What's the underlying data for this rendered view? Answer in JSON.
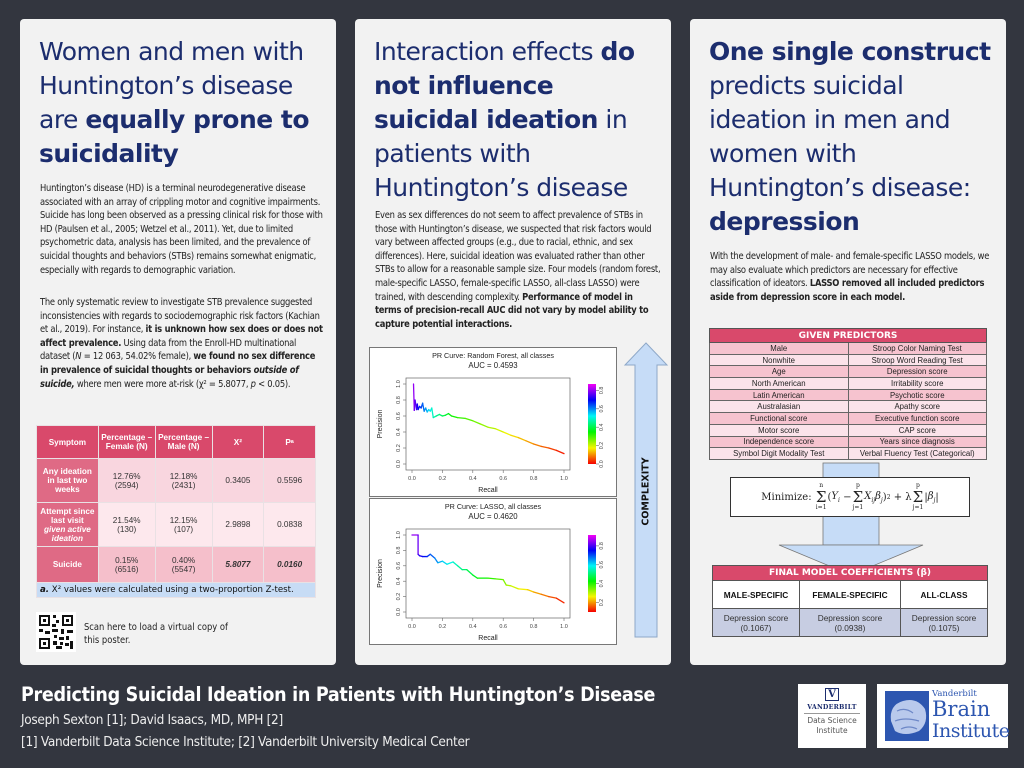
{
  "poster": {
    "title": "Predicting Suicidal Ideation in Patients with Huntington’s Disease",
    "authors": "Joseph Sexton [1]; David Isaacs, MD, MPH [2]",
    "affiliations": "[1] Vanderbilt Data Science Institute; [2] Vanderbilt University Medical Center",
    "logos": {
      "dsi": {
        "mark": "V",
        "name": "VANDERBILT",
        "line1": "Data Science",
        "line2": "Institute"
      },
      "vbi": {
        "line1": "Vanderbilt",
        "line2": "Brain",
        "line3": "Institute"
      }
    }
  },
  "panel1": {
    "heading_pre": "Women and men with Huntington’s disease are ",
    "heading_bold": "equally prone to suicidality",
    "para1": "Huntington’s disease (HD) is a terminal neurodegenerative disease associated with an array of crippling motor and cognitive impairments. Suicide has long been observed as a pressing clinical risk for those with HD (Paulsen et al., 2005; Wetzel et al., 2011). Yet, due to limited psychometric data, analysis has been limited, and the prevalence of suicidal thoughts and behaviors (STBs) remains somewhat enigmatic, especially with regards to demographic variation.",
    "para2_a": "The only systematic review to investigate STB prevalence suggested inconsistencies with regards to sociodemographic risk factors (Kachian et al., 2019). For instance, ",
    "para2_b": "it is unknown how sex does or does not affect prevalence.",
    "para2_c": " Using data from the Enroll-HD multinational dataset (",
    "para2_n": "N",
    "para2_d": " = 12 063, 54.02% female), ",
    "para2_e": "we found no sex difference in prevalence of suicidal thoughts or behaviors ",
    "para2_f": "outside of suicide,",
    "para2_g": " where men were more at-risk (χ² = 5.8077, ",
    "para2_p": "p",
    "para2_h": " < 0.05).",
    "table": {
      "headers": [
        "Symptom",
        "Percentage – Female (N)",
        "Percentage – Male (N)",
        "Χ²",
        "Pᵃ"
      ],
      "rows": [
        {
          "symptom": "Any ideation in last two weeks",
          "female": "12.76%",
          "female_n": "(2594)",
          "male": "12.18%",
          "male_n": "(2431)",
          "chi": "0.3405",
          "p": "0.5596"
        },
        {
          "symptom": "Attempt since last visit",
          "symptom_italic": "given active ideation",
          "female": "21.54%",
          "female_n": "(130)",
          "male": "12.15%",
          "male_n": "(107)",
          "chi": "2.9898",
          "p": "0.0838"
        },
        {
          "symptom": "Suicide",
          "female": "0.15%",
          "female_n": "(6516)",
          "male": "0.40%",
          "male_n": "(5547)",
          "chi": "5.8077",
          "p": "0.0160"
        }
      ],
      "note_label": "a.",
      "note": " Χ² values were calculated using a two-proportion Z-test."
    },
    "qr_text": "Scan here to load a virtual copy of this poster."
  },
  "panel2": {
    "heading_pre": "Interaction effects ",
    "heading_bold": "do not influence suicidal ideation",
    "heading_post": " in patients with Huntington’s disease",
    "para_a": "Even as sex differences do not seem to affect prevalence of STBs in those with Huntington’s disease, we suspected that risk factors would vary between affected groups (e.g., due to racial, ethnic, and sex differences). Here, suicidal ideation was evaluated rather than other STBs to allow for a reasonable sample size. Four models (random forest, male-specific LASSO, female-specific LASSO, all-class LASSO) were trained, with descending complexity. ",
    "para_b": "Performance of model in terms of precision-recall AUC did not vary by model ability to capture potential interactions.",
    "complexity_label": "COMPLEXITY"
  },
  "chart_data": [
    {
      "type": "line",
      "title": "PR Curve: Random Forest, all classes",
      "subtitle": "AUC = 0.4593",
      "xlabel": "Recall",
      "ylabel": "Precision",
      "xlim": [
        0,
        1
      ],
      "ylim": [
        0,
        1
      ],
      "xticks": [
        "0.0",
        "0.2",
        "0.4",
        "0.6",
        "0.8",
        "1.0"
      ],
      "yticks": [
        "0.0",
        "0.2",
        "0.4",
        "0.6",
        "0.8",
        "1.0"
      ],
      "colorbar_ticks": [
        "0.0",
        "0.2",
        "0.4",
        "0.6",
        "0.8"
      ],
      "colorbar_range": [
        0,
        0.8
      ],
      "x": [
        0.01,
        0.015,
        0.02,
        0.03,
        0.035,
        0.04,
        0.05,
        0.06,
        0.07,
        0.08,
        0.09,
        0.1,
        0.11,
        0.12,
        0.13,
        0.14,
        0.16,
        0.18,
        0.2,
        0.22,
        0.24,
        0.26,
        0.3,
        0.35,
        0.4,
        0.45,
        0.5,
        0.55,
        0.6,
        0.65,
        0.7,
        0.75,
        0.8,
        0.85,
        0.9,
        0.95,
        1.0
      ],
      "y": [
        1.0,
        0.67,
        0.8,
        0.68,
        0.75,
        0.68,
        0.72,
        0.7,
        0.76,
        0.66,
        0.7,
        0.65,
        0.68,
        0.66,
        0.7,
        0.58,
        0.6,
        0.62,
        0.6,
        0.61,
        0.63,
        0.6,
        0.58,
        0.57,
        0.54,
        0.5,
        0.46,
        0.44,
        0.4,
        0.36,
        0.33,
        0.29,
        0.25,
        0.22,
        0.2,
        0.17,
        0.13
      ]
    },
    {
      "type": "line",
      "title": "PR Curve: LASSO, all classes",
      "subtitle": "AUC = 0.4620",
      "xlabel": "Recall",
      "ylabel": "Precision",
      "xlim": [
        0,
        1
      ],
      "ylim": [
        0,
        1
      ],
      "xticks": [
        "0.0",
        "0.2",
        "0.4",
        "0.6",
        "0.8",
        "1.0"
      ],
      "yticks": [
        "0.0",
        "0.2",
        "0.4",
        "0.6",
        "0.8",
        "1.0"
      ],
      "colorbar_ticks": [
        "0.2",
        "0.4",
        "0.6",
        "0.8"
      ],
      "colorbar_range": [
        0.1,
        0.85
      ],
      "x": [
        0.0,
        0.04,
        0.04,
        0.05,
        0.07,
        0.1,
        0.12,
        0.15,
        0.17,
        0.2,
        0.23,
        0.27,
        0.3,
        0.33,
        0.36,
        0.4,
        0.43,
        0.5,
        0.55,
        0.6,
        0.62,
        0.65,
        0.7,
        0.76,
        0.8,
        0.85,
        0.9,
        0.95,
        1.0
      ],
      "y": [
        1.0,
        1.0,
        0.75,
        0.73,
        0.72,
        0.72,
        0.75,
        0.7,
        0.64,
        0.66,
        0.62,
        0.65,
        0.6,
        0.55,
        0.55,
        0.48,
        0.44,
        0.44,
        0.43,
        0.42,
        0.35,
        0.34,
        0.3,
        0.29,
        0.26,
        0.23,
        0.2,
        0.18,
        0.12
      ]
    }
  ],
  "panel3": {
    "heading_bold1": "One single construct",
    "heading_mid": " predicts suicidal ideation in men and women with Huntington’s disease: ",
    "heading_bold2": "depression",
    "para_a": "With the development of male- and female-specific LASSO models, we may also evaluate which predictors are necessary for effective classification of ideators. ",
    "para_b": "LASSO removed all included predictors aside from depression score in each model.",
    "predictors": {
      "title": "GIVEN PREDICTORS",
      "rows": [
        [
          "Male",
          "Stroop Color Naming Test"
        ],
        [
          "Nonwhite",
          "Stroop Word Reading Test"
        ],
        [
          "Age",
          "Depression score"
        ],
        [
          "North American",
          "Irritability score"
        ],
        [
          "Latin American",
          "Psychotic score"
        ],
        [
          "Australasian",
          "Apathy score"
        ],
        [
          "Functional score",
          "Executive function score"
        ],
        [
          "Motor score",
          "CAP score"
        ],
        [
          "Independence score",
          "Years since diagnosis"
        ],
        [
          "Symbol Digit Modality Test",
          "Verbal Fluency Test (Categorical)"
        ]
      ]
    },
    "formula": {
      "prefix": "Minimize:",
      "text": "Σ(Yᵢ − ΣXᵢⱼβⱼ)² + λΣ|βⱼ|"
    },
    "coefficients": {
      "title": "FINAL MODEL COEFFICIENTS (β)",
      "columns": [
        "MALE-SPECIFIC",
        "FEMALE-SPECIFIC",
        "ALL-CLASS"
      ],
      "values": [
        {
          "label": "Depression score",
          "value": "(0.1067)"
        },
        {
          "label": "Depression score",
          "value": "(0.0938)"
        },
        {
          "label": "Depression score",
          "value": "(0.1075)"
        }
      ]
    }
  }
}
